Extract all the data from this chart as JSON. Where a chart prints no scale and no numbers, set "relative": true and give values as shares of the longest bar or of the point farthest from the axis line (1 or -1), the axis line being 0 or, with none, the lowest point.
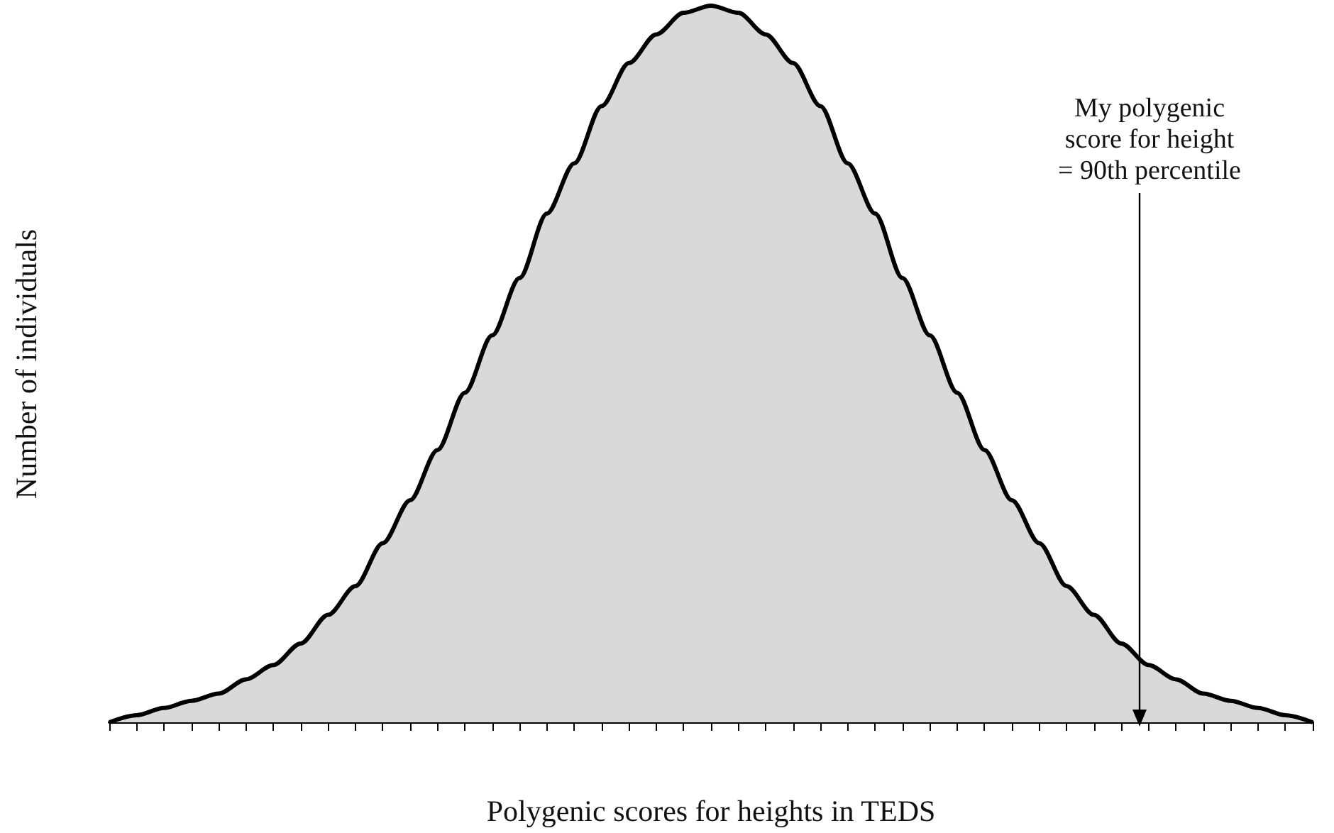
{
  "chart_data": {
    "type": "area",
    "relative": true,
    "color": "#d9d9d9",
    "xlabel": "Polygenic scores for heights in TEDS",
    "ylabel": "Number of individuals",
    "annotations": [
      "My polygenic\nscore for height\n= 90th percentile"
    ],
    "categories": [
      null,
      null,
      null,
      null,
      null,
      null,
      null,
      null,
      null,
      null,
      null,
      null,
      null,
      null,
      null,
      null,
      null,
      null,
      null,
      null,
      null,
      null,
      null,
      null,
      null,
      null,
      null,
      null,
      null,
      null,
      null,
      null,
      null,
      null,
      null,
      null,
      null,
      null,
      null,
      null,
      null,
      null,
      null,
      null,
      null
    ],
    "values": [
      0,
      0.01,
      0.02,
      0.03,
      0.04,
      0.06,
      0.08,
      0.11,
      0.15,
      0.19,
      0.25,
      0.31,
      0.38,
      0.46,
      0.54,
      0.62,
      0.71,
      0.78,
      0.86,
      0.92,
      0.96,
      0.99,
      1,
      0.99,
      0.96,
      0.92,
      0.86,
      0.78,
      0.71,
      0.62,
      0.54,
      0.46,
      0.38,
      0.31,
      0.25,
      0.19,
      0.15,
      0.11,
      0.08,
      0.06,
      0.04,
      0.03,
      0.02,
      0.01,
      0
    ],
    "grid": false,
    "marker": "none"
  }
}
